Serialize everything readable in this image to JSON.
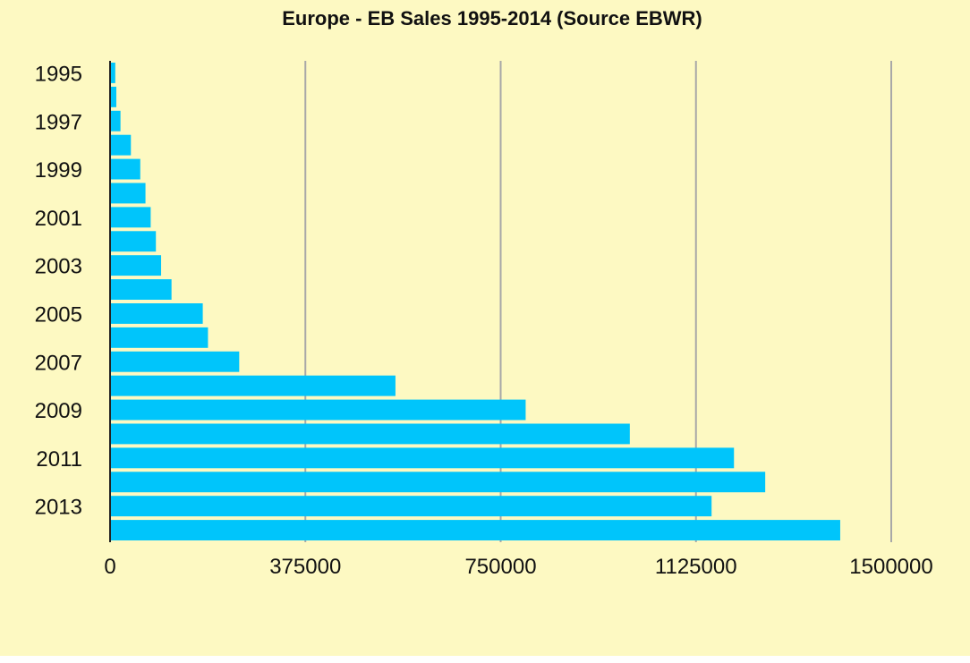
{
  "chart_data": {
    "type": "bar",
    "orientation": "horizontal",
    "title": "Europe - EB Sales 1995-2014 (Source EBWR)",
    "xlabel": "",
    "ylabel": "",
    "categories": [
      "1995",
      "1996",
      "1997",
      "1998",
      "1999",
      "2000",
      "2001",
      "2002",
      "2003",
      "2004",
      "2005",
      "2006",
      "2007",
      "2008",
      "2009",
      "2010",
      "2011",
      "2012",
      "2013",
      "2014"
    ],
    "category_tick_labels": [
      "1995",
      "1997",
      "1999",
      "2001",
      "2003",
      "2005",
      "2007",
      "2009",
      "2011",
      "2013"
    ],
    "values": [
      10000,
      12000,
      20000,
      40000,
      58000,
      68000,
      78000,
      88000,
      98000,
      118000,
      178000,
      188000,
      248000,
      548000,
      798000,
      998000,
      1198000,
      1258000,
      1155000,
      1402000
    ],
    "xlim": [
      0,
      1500000
    ],
    "x_ticks": [
      "0",
      "375000",
      "750000",
      "1125000",
      "1500000"
    ],
    "grid": "vertical",
    "legend": "none",
    "colors": {
      "bar": "#00c5fb",
      "background": "#fdf9c2",
      "grid": "#a8a8a8",
      "axis": "#222222"
    }
  }
}
